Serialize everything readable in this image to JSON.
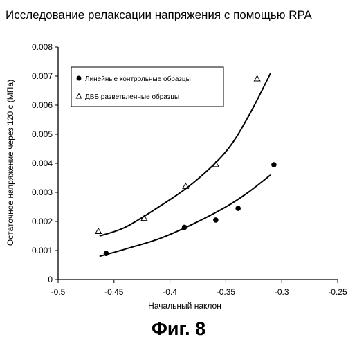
{
  "chart_data": {
    "type": "scatter",
    "title": "Исследование релаксации напряжения с помощью RPA",
    "xlabel": "Начальный наклон",
    "ylabel": "Остаточное напряжение через 120 с (МПа)",
    "xlim": [
      -0.5,
      -0.25
    ],
    "ylim": [
      0,
      0.008
    ],
    "x_ticks": [
      -0.5,
      -0.45,
      -0.4,
      -0.35,
      -0.3,
      -0.25
    ],
    "x_tick_labels": [
      "-0.5",
      "-0.45",
      "-0.4",
      "-0.35",
      "-0.3",
      "-0.25"
    ],
    "y_ticks": [
      0,
      0.001,
      0.002,
      0.003,
      0.004,
      0.005,
      0.006,
      0.007,
      0.008
    ],
    "y_tick_labels": [
      "0",
      "0.001",
      "0.002",
      "0.003",
      "0.004",
      "0.005",
      "0.006",
      "0.007",
      "0.008"
    ],
    "grid": false,
    "legend_position": "top-left",
    "series": [
      {
        "name": "Линейные контрольные образцы",
        "marker": "filled-circle",
        "points": [
          {
            "x": -0.457,
            "y": 0.0009
          },
          {
            "x": -0.387,
            "y": 0.0018
          },
          {
            "x": -0.359,
            "y": 0.00205
          },
          {
            "x": -0.339,
            "y": 0.00245
          },
          {
            "x": -0.307,
            "y": 0.00395
          }
        ],
        "trend": [
          {
            "x": -0.463,
            "y": 0.0008
          },
          {
            "x": -0.44,
            "y": 0.00105
          },
          {
            "x": -0.41,
            "y": 0.0014
          },
          {
            "x": -0.38,
            "y": 0.0019
          },
          {
            "x": -0.35,
            "y": 0.0025
          },
          {
            "x": -0.33,
            "y": 0.003
          },
          {
            "x": -0.31,
            "y": 0.0036
          }
        ]
      },
      {
        "name": "ДВБ разветвленные образцы",
        "marker": "open-triangle",
        "points": [
          {
            "x": -0.464,
            "y": 0.00165
          },
          {
            "x": -0.423,
            "y": 0.0021
          },
          {
            "x": -0.386,
            "y": 0.0032
          },
          {
            "x": -0.359,
            "y": 0.00395
          },
          {
            "x": -0.322,
            "y": 0.0069
          }
        ],
        "trend": [
          {
            "x": -0.463,
            "y": 0.0015
          },
          {
            "x": -0.44,
            "y": 0.0018
          },
          {
            "x": -0.41,
            "y": 0.0025
          },
          {
            "x": -0.38,
            "y": 0.0033
          },
          {
            "x": -0.35,
            "y": 0.0044
          },
          {
            "x": -0.33,
            "y": 0.0056
          },
          {
            "x": -0.31,
            "y": 0.0071
          }
        ]
      }
    ]
  },
  "caption": "Фиг. 8"
}
